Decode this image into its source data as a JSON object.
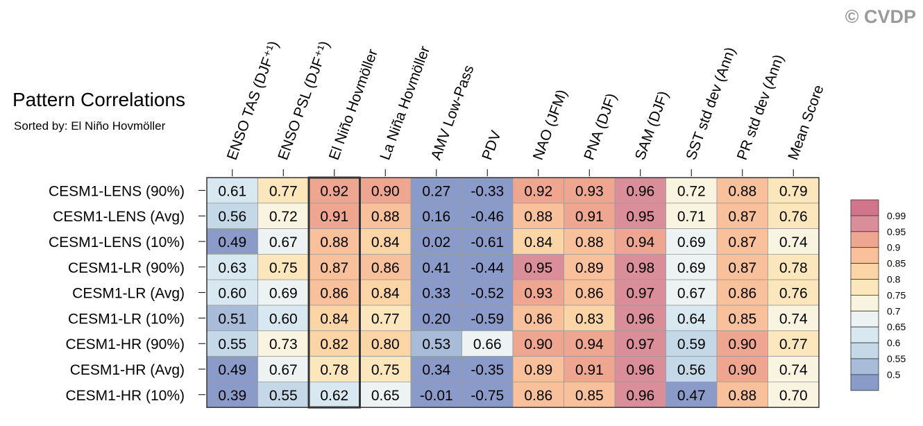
{
  "copyright": "© CVDP",
  "chart_data": {
    "type": "heatmap",
    "title": "Pattern Correlations",
    "subtitle": "Sorted by: El Niño Hovmöller",
    "highlighted_column": "El Niño Hovmöller",
    "columns": [
      "ENSO TAS (DJF⁺¹)",
      "ENSO PSL (DJF⁺¹)",
      "El Niño Hovmöller",
      "La Niña Hovmöller",
      "AMV Low-Pass",
      "PDV",
      "NAO (JFM)",
      "PNA (DJF)",
      "SAM (DJF)",
      "SST std dev (Ann)",
      "PR std dev (Ann)",
      "Mean Score"
    ],
    "rows": [
      "CESM1-LENS (90%)",
      "CESM1-LENS (Avg)",
      "CESM1-LENS (10%)",
      "CESM1-LR (90%)",
      "CESM1-LR (Avg)",
      "CESM1-LR (10%)",
      "CESM1-HR (90%)",
      "CESM1-HR (Avg)",
      "CESM1-HR (10%)"
    ],
    "values": [
      [
        "0.61",
        "0.77",
        "0.92",
        "0.90",
        "0.27",
        "-0.33",
        "0.92",
        "0.93",
        "0.96",
        "0.72",
        "0.88",
        "0.79"
      ],
      [
        "0.56",
        "0.72",
        "0.91",
        "0.88",
        "0.16",
        "-0.46",
        "0.88",
        "0.91",
        "0.95",
        "0.71",
        "0.87",
        "0.76"
      ],
      [
        "0.49",
        "0.67",
        "0.88",
        "0.84",
        "0.02",
        "-0.61",
        "0.84",
        "0.88",
        "0.94",
        "0.69",
        "0.87",
        "0.74"
      ],
      [
        "0.63",
        "0.75",
        "0.87",
        "0.86",
        "0.41",
        "-0.44",
        "0.95",
        "0.89",
        "0.98",
        "0.69",
        "0.87",
        "0.78"
      ],
      [
        "0.60",
        "0.69",
        "0.86",
        "0.84",
        "0.33",
        "-0.52",
        "0.93",
        "0.86",
        "0.97",
        "0.67",
        "0.86",
        "0.76"
      ],
      [
        "0.51",
        "0.60",
        "0.84",
        "0.77",
        "0.20",
        "-0.59",
        "0.86",
        "0.83",
        "0.96",
        "0.64",
        "0.85",
        "0.74"
      ],
      [
        "0.55",
        "0.73",
        "0.82",
        "0.80",
        "0.53",
        "0.66",
        "0.90",
        "0.94",
        "0.97",
        "0.59",
        "0.90",
        "0.77"
      ],
      [
        "0.49",
        "0.67",
        "0.78",
        "0.75",
        "0.34",
        "-0.35",
        "0.89",
        "0.91",
        "0.96",
        "0.56",
        "0.90",
        "0.74"
      ],
      [
        "0.39",
        "0.55",
        "0.62",
        "0.65",
        "-0.01",
        "-0.75",
        "0.86",
        "0.85",
        "0.96",
        "0.47",
        "0.88",
        "0.70"
      ]
    ],
    "legend": {
      "levels": [
        "0.99",
        "0.95",
        "0.9",
        "0.85",
        "0.8",
        "0.75",
        "0.7",
        "0.65",
        "0.6",
        "0.55",
        "0.5"
      ],
      "thresholds": [
        0.5,
        0.55,
        0.6,
        0.65,
        0.7,
        0.75,
        0.8,
        0.85,
        0.9,
        0.95,
        0.99
      ],
      "colors": [
        "#8b9bc9",
        "#a8bcda",
        "#c4d8e8",
        "#d8e8f1",
        "#edf3f3",
        "#f8f4e0",
        "#fce7bc",
        "#fbd5a6",
        "#f8c09b",
        "#efa691",
        "#d98e99",
        "#d2748c"
      ]
    }
  }
}
